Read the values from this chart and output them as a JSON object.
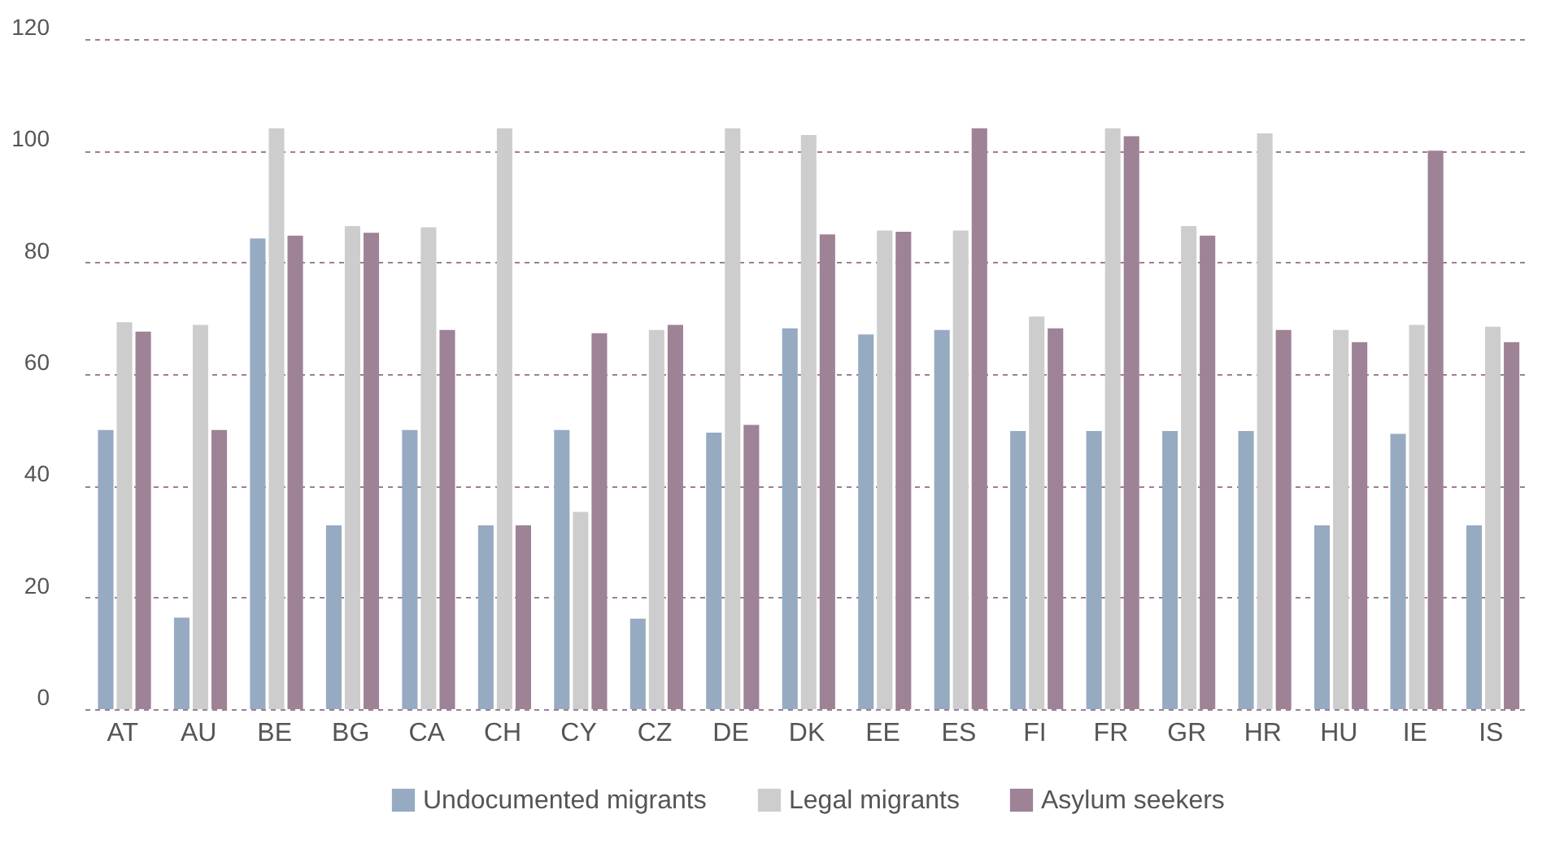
{
  "chart_data": {
    "type": "bar",
    "categories": [
      "AT",
      "AU",
      "BE",
      "BG",
      "CA",
      "CH",
      "CY",
      "CZ",
      "DE",
      "DK",
      "EE",
      "ES",
      "FI",
      "FR",
      "GR",
      "HR",
      "HU",
      "IE",
      "IS"
    ],
    "series": [
      {
        "name": "Undocumented migrants",
        "color": "#96abc2",
        "values": [
          50,
          16.4,
          84.3,
          32.9,
          50,
          32.9,
          50,
          16.2,
          49.5,
          68.2,
          67.1,
          67.9,
          49.8,
          49.8,
          49.8,
          49.8,
          32.9,
          49.3,
          32.9
        ]
      },
      {
        "name": "Legal migrants",
        "color": "#cdcdcd",
        "values": [
          69.3,
          68.8,
          104,
          86.5,
          86.3,
          104,
          35.3,
          67.9,
          104,
          102.8,
          85.7,
          85.7,
          70.3,
          104,
          86.5,
          103.1,
          67.9,
          68.8,
          68.5
        ]
      },
      {
        "name": "Asylum seekers",
        "color": "#9e8295",
        "values": [
          67.6,
          50,
          84.8,
          85.3,
          67.9,
          32.9,
          67.3,
          68.8,
          50.9,
          85,
          85.5,
          104,
          68.2,
          102.6,
          84.8,
          67.9,
          65.7,
          100,
          65.7
        ]
      }
    ],
    "ylim": [
      0,
      120
    ],
    "yticks": [
      0,
      20,
      40,
      60,
      80,
      100,
      120
    ],
    "grid": "y",
    "legend": "bottom"
  }
}
